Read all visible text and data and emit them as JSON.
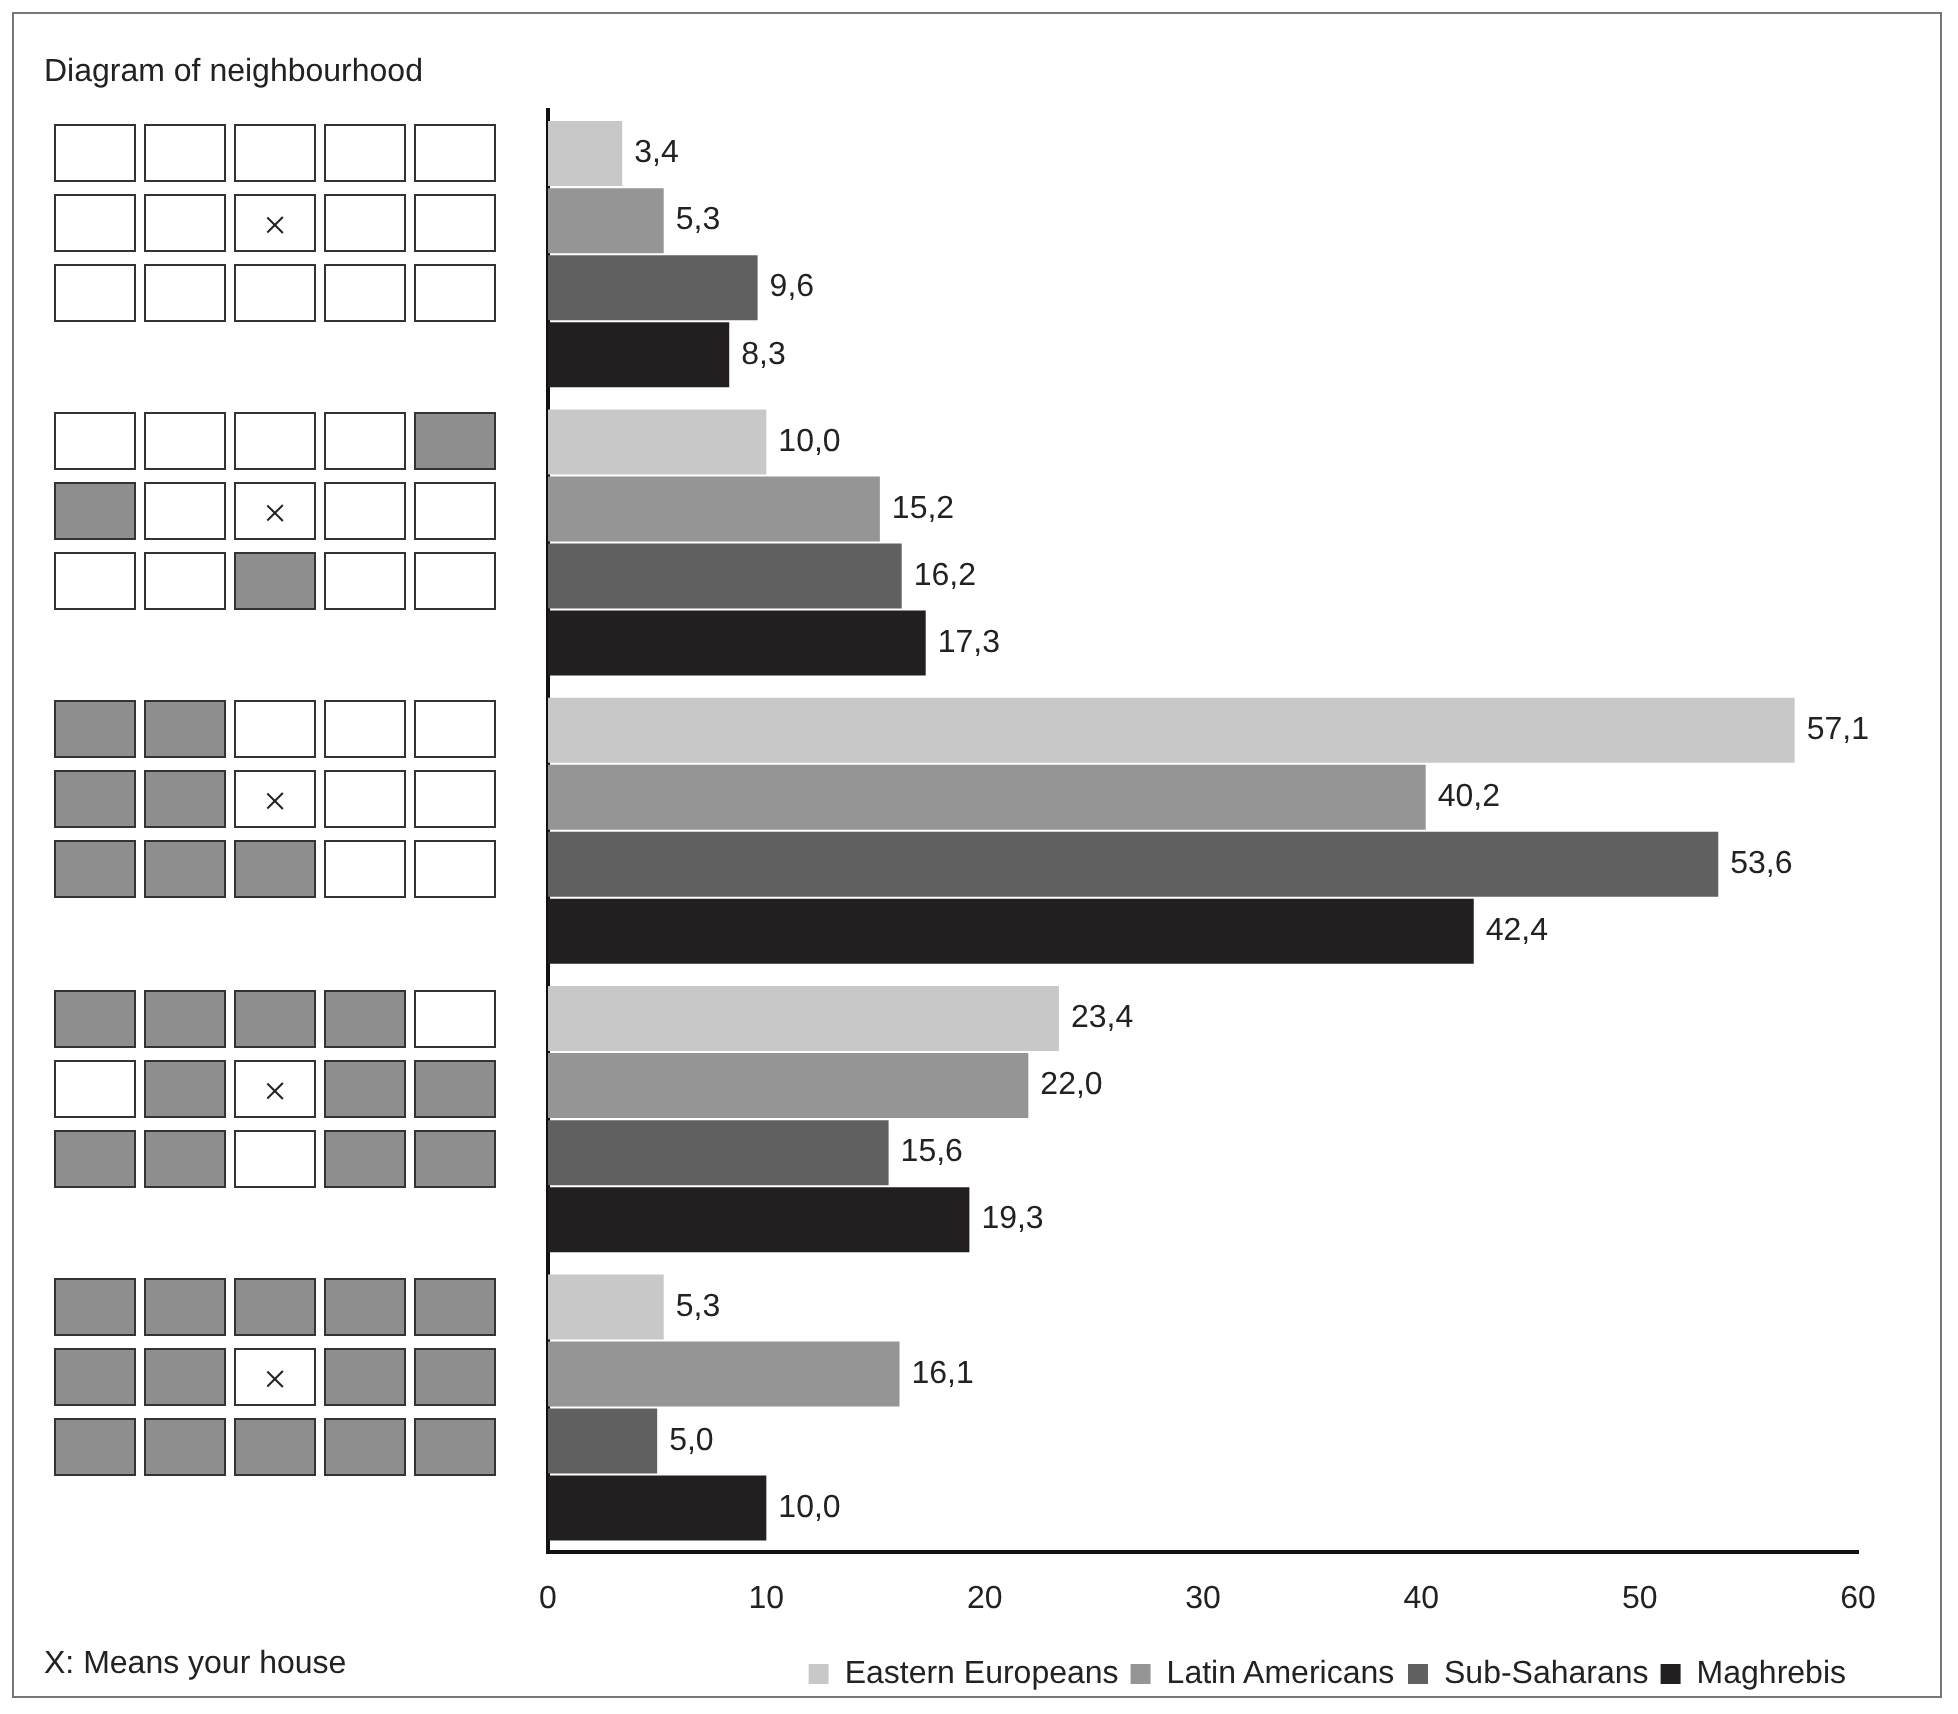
{
  "chart_data": {
    "type": "bar",
    "orientation": "horizontal",
    "title": "Diagram of neighbourhood",
    "categories": [
      null,
      null,
      null,
      null,
      null
    ],
    "series": [
      {
        "name": "Eastern Europeans",
        "color": "#c8c8c8",
        "values": [
          3.4,
          10.0,
          57.1,
          23.4,
          5.3
        ],
        "value_labels": [
          "3,4",
          "10,0",
          "57,1",
          "23,4",
          "5,3"
        ]
      },
      {
        "name": "Latin Americans",
        "color": "#959595",
        "values": [
          5.3,
          15.2,
          40.2,
          22.0,
          16.1
        ],
        "value_labels": [
          "5,3",
          "15,2",
          "40,2",
          "22,0",
          "16,1"
        ]
      },
      {
        "name": "Sub-Saharans",
        "color": "#606060",
        "values": [
          9.6,
          16.2,
          53.6,
          15.6,
          5.0
        ],
        "value_labels": [
          "9,6",
          "16,2",
          "53,6",
          "15,6",
          "5,0"
        ]
      },
      {
        "name": "Maghrebis",
        "color": "#231f20",
        "values": [
          8.3,
          17.3,
          42.4,
          19.3,
          10.0
        ],
        "value_labels": [
          "8,3",
          "17,3",
          "42,4",
          "19,3",
          "10,0"
        ]
      }
    ],
    "xlim": [
      0,
      60
    ],
    "xticks": [
      0,
      10,
      20,
      30,
      40,
      50,
      60
    ],
    "grid": false,
    "legend": "bottom right",
    "annotations": [
      "X: Means your house"
    ]
  }
}
